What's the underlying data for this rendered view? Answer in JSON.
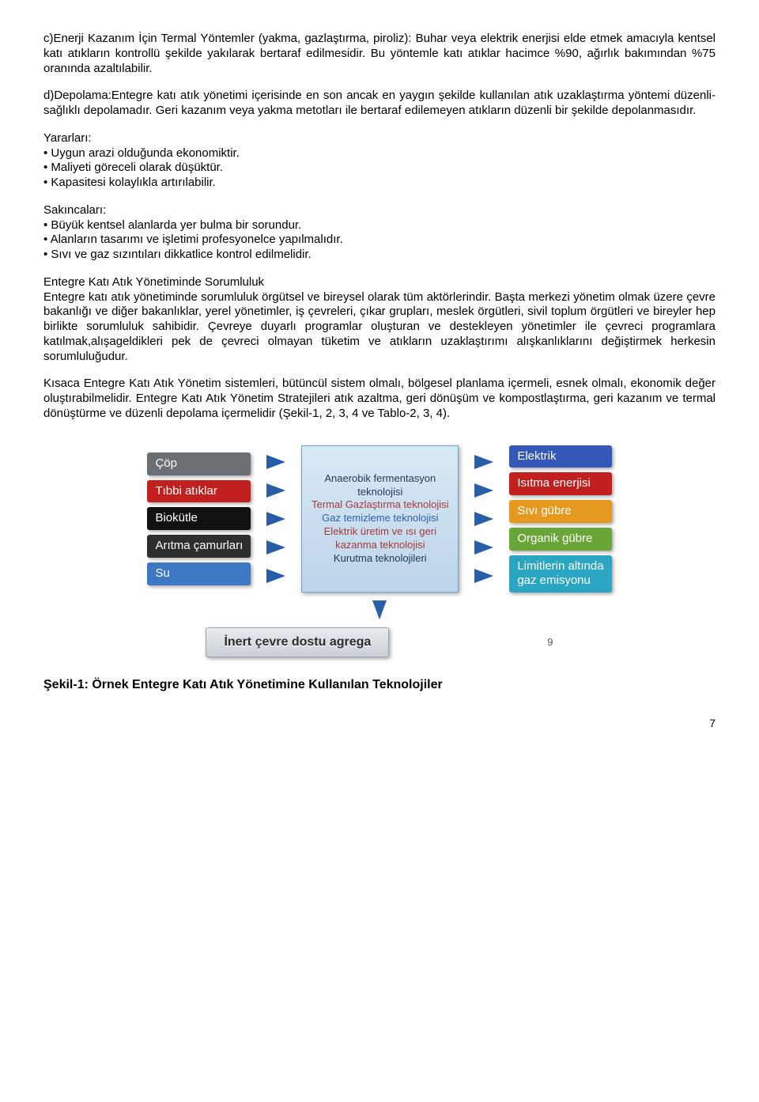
{
  "p1": "c)Enerji Kazanım İçin Termal Yöntemler (yakma, gazlaştırma, piroliz): Buhar veya elektrik enerjisi elde etmek amacıyla kentsel katı atıkların kontrollü şekilde yakılarak bertaraf edilmesidir. Bu yöntemle katı atıklar hacimce %90, ağırlık bakımından %75 oranında azaltılabilir.",
  "p2": "d)Depolama:Entegre katı atık yönetimi içerisinde en son ancak en yaygın şekilde kullanılan atık uzaklaştırma yöntemi düzenli-sağlıklı depolamadır. Geri kazanım veya yakma metotları ile bertaraf edilemeyen atıkların düzenli bir şekilde depolanmasıdır.",
  "yarar_label": "Yararları:",
  "yarar": [
    "• Uygun arazi olduğunda ekonomiktir.",
    "• Maliyeti göreceli olarak düşüktür.",
    "• Kapasitesi kolaylıkla artırılabilir."
  ],
  "sakin_label": "Sakıncaları:",
  "sakin": [
    "• Büyük kentsel alanlarda yer bulma bir sorundur.",
    "• Alanların tasarımı ve işletimi profesyonelce yapılmalıdır.",
    "• Sıvı ve gaz sızıntıları dikkatlice kontrol edilmelidir."
  ],
  "p3_title": "Entegre Katı Atık Yönetiminde Sorumluluk",
  "p3": "Entegre katı atık yönetiminde sorumluluk örgütsel ve bireysel olarak tüm aktörlerindir. Başta merkezi yönetim olmak üzere çevre bakanlığı ve diğer bakanlıklar, yerel yönetimler, iş çevreleri, çıkar grupları, meslek örgütleri, sivil toplum örgütleri ve bireyler hep birlikte sorumluluk sahibidir. Çevreye duyarlı programlar oluşturan ve destekleyen yönetimler ile çevreci programlara katılmak,alışageldikleri pek de çevreci olmayan tüketim ve atıkların uzaklaştırımı alışkanlıklarını değiştirmek herkesin sorumluluğudur.",
  "p4": "Kısaca Entegre Katı Atık Yönetim sistemleri, bütüncül sistem olmalı, bölgesel planlama içermeli, esnek olmalı, ekonomik değer oluştırabilmelidir. Entegre Katı Atık Yönetim Stratejileri atık azaltma, geri dönüşüm ve kompostlaştırma, geri kazanım ve termal dönüştürme ve düzenli depolama içermelidir (Şekil-1, 2, 3, 4 ve Tablo-2, 3, 4).",
  "diagram": {
    "inputs": [
      {
        "label": "Çöp",
        "bg": "#6a6f73"
      },
      {
        "label": "Tıbbi atıklar",
        "bg": "#c21f1f"
      },
      {
        "label": "Biokütle",
        "bg": "#111111"
      },
      {
        "label": "Arıtma çamurları",
        "bg": "#2e2e2e"
      },
      {
        "label": "Su",
        "bg": "#3e78c2"
      }
    ],
    "center_lines": [
      {
        "text": "Anaerobik fermentasyon teknolojisi",
        "color": "#1f3a56"
      },
      {
        "text": "Termal Gazlaştırma teknolojisi",
        "color": "#a33a3a"
      },
      {
        "text": "Gaz temizleme teknolojisi",
        "color": "#2d63a5"
      },
      {
        "text": "Elektrik üretim ve ısı geri kazanma teknolojisi",
        "color": "#a33a3a"
      },
      {
        "text": "Kurutma teknolojileri",
        "color": "#1f3a56"
      }
    ],
    "outputs": [
      {
        "label": "Elektrik",
        "bg": "#3558b8"
      },
      {
        "label": "Isıtma enerjisi",
        "bg": "#c21f1f"
      },
      {
        "label": "Sıvı gübre",
        "bg": "#e59a1f"
      },
      {
        "label": "Organik gübre",
        "bg": "#6aa53a"
      },
      {
        "label": "Limitlerin altında\ngaz emisyonu",
        "bg": "#2aa5c2"
      }
    ],
    "bottom": "İnert çevre dostu agrega",
    "slide_num": "9"
  },
  "caption": "Şekil-1: Örnek Entegre Katı Atık Yönetimine Kullanılan Teknolojiler",
  "page_num": "7"
}
